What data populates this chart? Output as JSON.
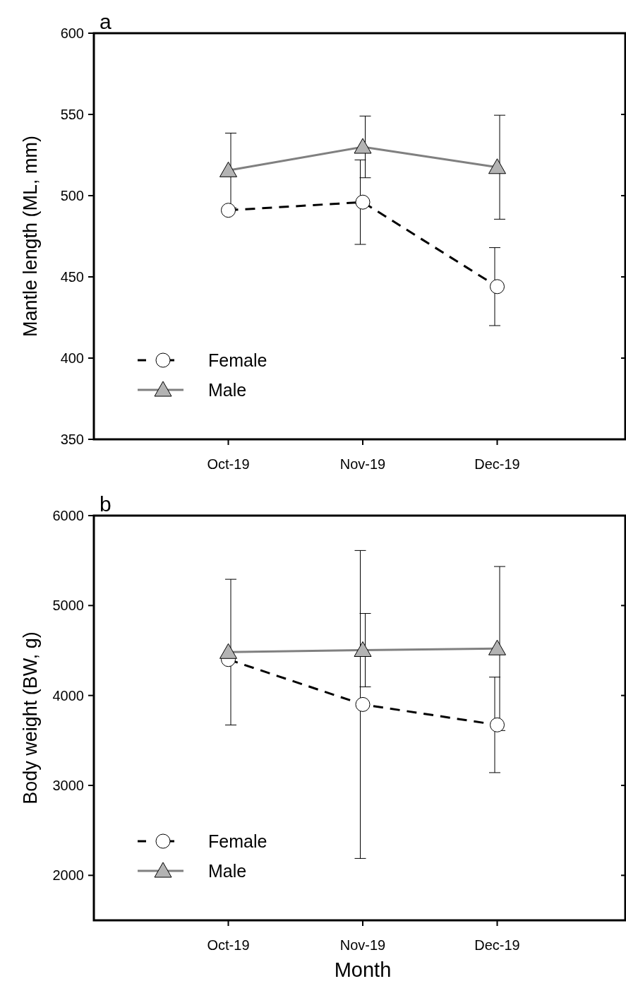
{
  "chart_data": [
    {
      "type": "line",
      "title": "a",
      "ylabel": "Mantle length (ML, mm)",
      "categories": [
        "Oct-19",
        "Nov-19",
        "Dec-19"
      ],
      "ylim": [
        350,
        600
      ],
      "yticks": [
        350,
        400,
        450,
        500,
        550,
        600
      ],
      "grid": false,
      "legend": "bottom left",
      "series": [
        {
          "name": "Female",
          "color": "#000000",
          "marker": "circle",
          "line_style": "dashed",
          "values": [
            491,
            496,
            444
          ],
          "errors": [
            null,
            26,
            24
          ]
        },
        {
          "name": "Male",
          "color": "#808080",
          "marker": "triangle",
          "line_style": "solid",
          "values": [
            515.5,
            530,
            517.5
          ],
          "errors": [
            23,
            19,
            32
          ]
        }
      ]
    },
    {
      "type": "line",
      "title": "b",
      "ylabel": "Body weight (BW, g)",
      "xlabel": "Month",
      "categories": [
        "Oct-19",
        "Nov-19",
        "Dec-19"
      ],
      "ylim": [
        1500,
        6000
      ],
      "yticks": [
        2000,
        3000,
        4000,
        5000,
        6000
      ],
      "grid": false,
      "legend": "bottom left",
      "series": [
        {
          "name": "Female",
          "color": "#000000",
          "marker": "circle",
          "line_style": "dashed",
          "values": [
            4400,
            3900,
            3673
          ],
          "errors": [
            null,
            1712,
            531
          ]
        },
        {
          "name": "Male",
          "color": "#808080",
          "marker": "triangle",
          "line_style": "solid",
          "values": [
            4482,
            4504,
            4522
          ],
          "errors": [
            810,
            408,
            912
          ]
        }
      ]
    }
  ]
}
